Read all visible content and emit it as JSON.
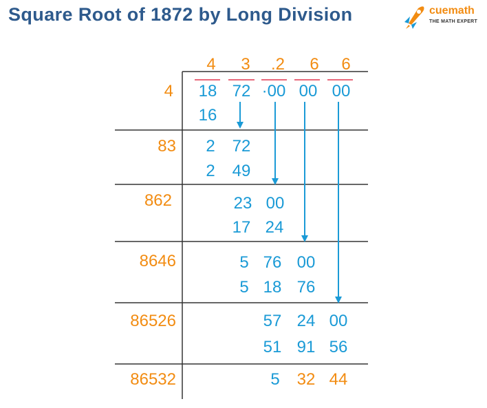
{
  "title": "Square Root of 1872 by Long Division",
  "logo": {
    "name": "cuemath",
    "tagline": "THE MATH EXPERT"
  },
  "colors": {
    "title": "#2e5a8c",
    "blue": "#1a9ad6",
    "orange": "#f28c12",
    "bar": "#e8687a",
    "line": "#333333",
    "brand": "#f28c12"
  },
  "quotient": [
    "4",
    "3",
    ".2",
    "6",
    "6"
  ],
  "dividend": [
    "18",
    "72",
    "·00",
    "00",
    "00"
  ],
  "divisors": [
    "4",
    "83",
    "862",
    "8646",
    "86526",
    "86532"
  ],
  "steps": [
    {
      "subtract": [
        "16"
      ]
    },
    {
      "remainder": [
        "2",
        "72"
      ],
      "subtract": [
        "2",
        "49"
      ]
    },
    {
      "remainder": [
        "23",
        "00"
      ],
      "subtract": [
        "17",
        "24"
      ]
    },
    {
      "remainder": [
        "5",
        "76",
        "00"
      ],
      "subtract": [
        "5",
        "18",
        "76"
      ]
    },
    {
      "remainder": [
        "57",
        "24",
        "00"
      ],
      "subtract": [
        "51",
        "91",
        "56"
      ]
    }
  ],
  "final_remainder": [
    "5",
    "32",
    "44"
  ]
}
